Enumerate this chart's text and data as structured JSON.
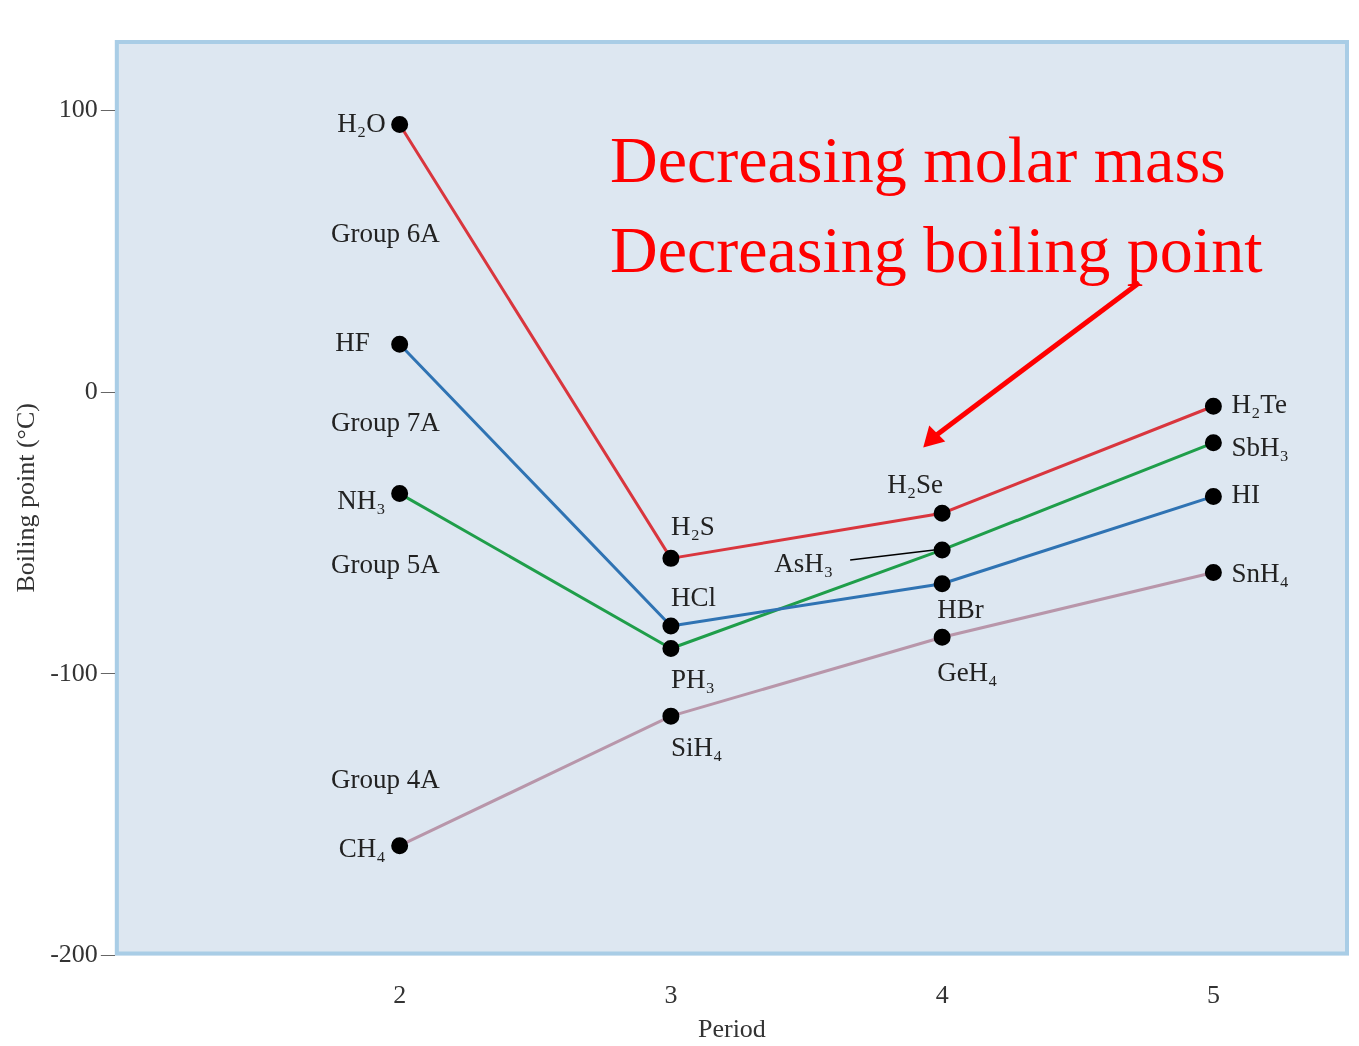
{
  "chart_data": {
    "type": "line",
    "xlabel": "Period",
    "ylabel": "Boiling point (°C)",
    "x": [
      2,
      3,
      4,
      5
    ],
    "xlim": [
      0.95,
      5.5
    ],
    "xticks": [
      2,
      3,
      4,
      5
    ],
    "ylim": [
      -200,
      125
    ],
    "yticks": [
      -200,
      -100,
      0,
      100
    ],
    "grid": false,
    "legend": false,
    "marker": "circle",
    "line_style": "solid",
    "series": [
      {
        "name": "Group 6A",
        "color": "#d9363e",
        "values": [
          95,
          -59,
          -43,
          -5
        ]
      },
      {
        "name": "Group 7A",
        "color": "#2f73b3",
        "values": [
          17,
          -83,
          -68,
          -37
        ]
      },
      {
        "name": "Group 5A",
        "color": "#1f9e4a",
        "values": [
          -36,
          -91,
          -56,
          -18
        ]
      },
      {
        "name": "Group 4A",
        "color": "#b896aa",
        "values": [
          -161,
          -115,
          -87,
          -64
        ]
      }
    ],
    "annotations": [
      {
        "text": "H₂O",
        "x": 2,
        "y": 95
      },
      {
        "text": "H₂S",
        "x": 3,
        "y": -59
      },
      {
        "text": "H₂Se",
        "x": 4,
        "y": -43
      },
      {
        "text": "H₂Te",
        "x": 5,
        "y": -5
      },
      {
        "text": "HF",
        "x": 2,
        "y": 17
      },
      {
        "text": "HCl",
        "x": 3,
        "y": -83
      },
      {
        "text": "HBr",
        "x": 4,
        "y": -68
      },
      {
        "text": "HI",
        "x": 5,
        "y": -37
      },
      {
        "text": "NH₃",
        "x": 2,
        "y": -36
      },
      {
        "text": "PH₃",
        "x": 3,
        "y": -91
      },
      {
        "text": "AsH₃",
        "x": 4,
        "y": -56
      },
      {
        "text": "SbH₃",
        "x": 5,
        "y": -18
      },
      {
        "text": "CH₄",
        "x": 2,
        "y": -161
      },
      {
        "text": "SiH₄",
        "x": 3,
        "y": -115
      },
      {
        "text": "GeH₄",
        "x": 4,
        "y": -87
      },
      {
        "text": "SnH₄",
        "x": 5,
        "y": -64
      },
      "Decreasing molar mass",
      "Decreasing boiling point"
    ]
  }
}
